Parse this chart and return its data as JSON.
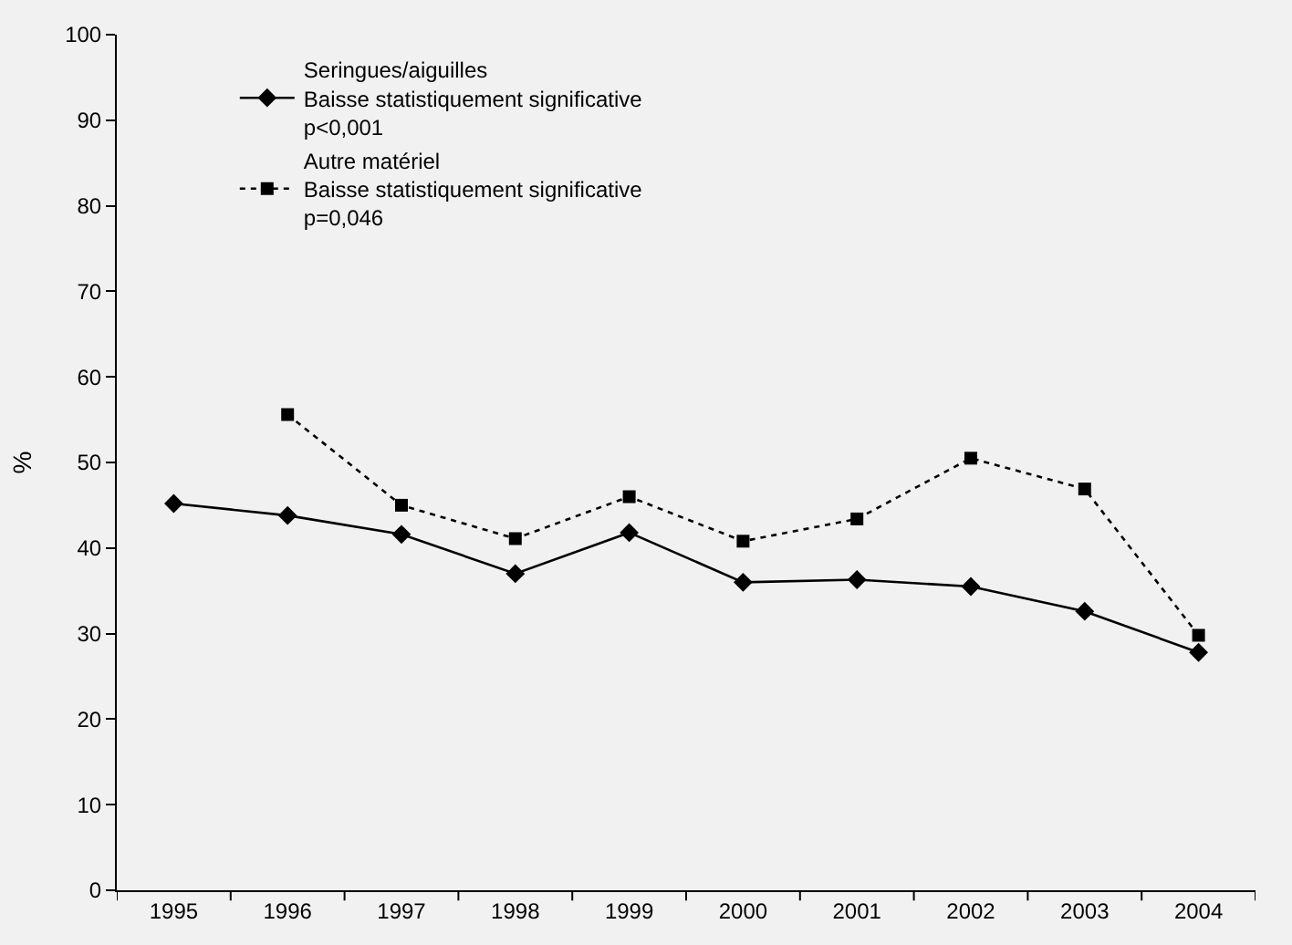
{
  "chart_data": {
    "type": "line",
    "ylabel": "%",
    "categories": [
      "1995",
      "1996",
      "1997",
      "1998",
      "1999",
      "2000",
      "2001",
      "2002",
      "2003",
      "2004"
    ],
    "series": [
      {
        "name": "Seringues/aiguilles\nBaisse statistiquement significative\np<0,001",
        "color": "#000000",
        "marker": "diamond",
        "line_style": "solid",
        "values": [
          45.2,
          43.8,
          41.6,
          37.0,
          41.8,
          36.0,
          36.3,
          35.5,
          32.6,
          27.8
        ]
      },
      {
        "name": "Autre matériel\nBaisse statistiquement significative\np=0,046",
        "color": "#000000",
        "marker": "square",
        "line_style": "dotted",
        "values": [
          null,
          55.6,
          45.0,
          41.1,
          46.0,
          40.8,
          43.4,
          50.5,
          46.9,
          29.8
        ]
      }
    ],
    "ylim": [
      0,
      100
    ],
    "yticks": [
      0,
      10,
      20,
      30,
      40,
      50,
      60,
      70,
      80,
      90,
      100
    ],
    "grid": false,
    "legend": "top"
  }
}
